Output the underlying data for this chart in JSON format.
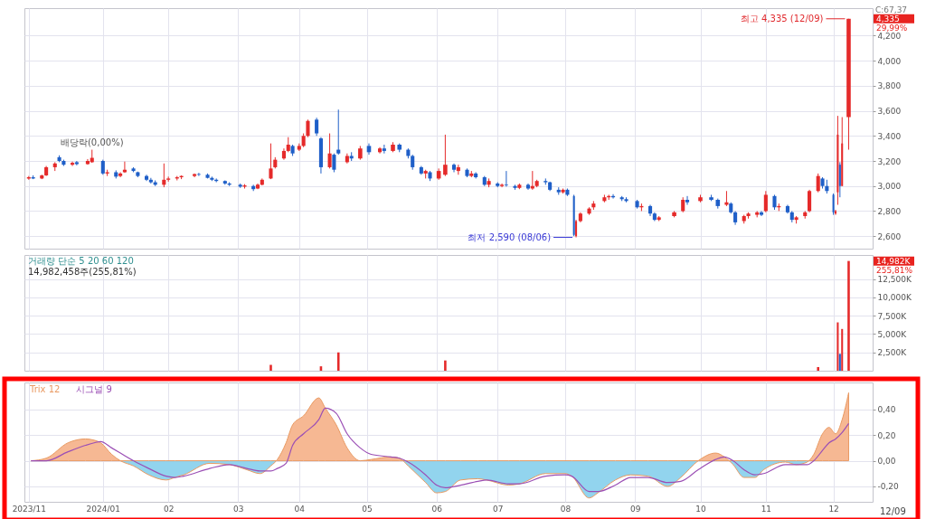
{
  "chart_data": [
    {
      "type": "candlestick",
      "x": [
        "2023-11-29",
        "2023-12-01",
        "2023-12-05",
        "2023-12-07",
        "2023-12-11",
        "2023-12-13",
        "2023-12-15",
        "2023-12-19",
        "2023-12-21",
        "2023-12-26",
        "2023-12-28",
        "2024-01-02",
        "2024-01-04",
        "2024-01-08",
        "2024-01-10",
        "2024-01-12",
        "2024-01-16",
        "2024-01-18",
        "2024-01-22",
        "2024-01-24",
        "2024-01-26",
        "2024-01-30",
        "2024-02-01",
        "2024-02-05",
        "2024-02-07",
        "2024-02-13",
        "2024-02-15",
        "2024-02-19",
        "2024-02-21",
        "2024-02-23",
        "2024-02-27",
        "2024-02-29",
        "2024-03-05",
        "2024-03-07",
        "2024-03-11",
        "2024-03-13",
        "2024-03-15",
        "2024-03-19",
        "2024-03-21",
        "2024-03-25",
        "2024-03-27",
        "2024-03-29",
        "2024-04-01",
        "2024-04-03",
        "2024-04-05",
        "2024-04-09",
        "2024-04-11",
        "2024-04-15",
        "2024-04-17",
        "2024-04-19",
        "2024-04-23",
        "2024-04-25",
        "2024-04-29",
        "2024-05-03",
        "2024-05-08",
        "2024-05-10",
        "2024-05-14",
        "2024-05-17",
        "2024-05-21",
        "2024-05-23",
        "2024-05-27",
        "2024-05-29",
        "2024-05-31",
        "2024-06-04",
        "2024-06-07",
        "2024-06-11",
        "2024-06-13",
        "2024-06-17",
        "2024-06-19",
        "2024-06-21",
        "2024-06-25",
        "2024-06-27",
        "2024-07-01",
        "2024-07-03",
        "2024-07-05",
        "2024-07-09",
        "2024-07-11",
        "2024-07-15",
        "2024-07-17",
        "2024-07-19",
        "2024-07-23",
        "2024-07-25",
        "2024-07-29",
        "2024-07-31",
        "2024-08-02",
        "2024-08-05",
        "2024-08-06",
        "2024-08-08",
        "2024-08-12",
        "2024-08-14",
        "2024-08-19",
        "2024-08-21",
        "2024-08-23",
        "2024-08-27",
        "2024-08-29",
        "2024-09-03",
        "2024-09-05",
        "2024-09-09",
        "2024-09-11",
        "2024-09-13",
        "2024-09-20",
        "2024-09-24",
        "2024-09-26",
        "2024-10-02",
        "2024-10-07",
        "2024-10-10",
        "2024-10-14",
        "2024-10-16",
        "2024-10-18",
        "2024-10-22",
        "2024-10-24",
        "2024-10-28",
        "2024-10-30",
        "2024-11-01",
        "2024-11-05",
        "2024-11-07",
        "2024-11-11",
        "2024-11-13",
        "2024-11-15",
        "2024-11-19",
        "2024-11-21",
        "2024-11-25",
        "2024-11-27",
        "2024-11-29",
        "2024-12-02",
        "2024-12-03",
        "2024-12-04",
        "2024-12-05",
        "2024-12-06",
        "2024-12-09"
      ],
      "ohlc": [
        [
          3060,
          3080,
          3050,
          3070
        ],
        [
          3070,
          3085,
          3055,
          3060
        ],
        [
          3060,
          3090,
          3055,
          3085
        ],
        [
          3085,
          3160,
          3080,
          3150
        ],
        [
          3150,
          3190,
          3120,
          3180
        ],
        [
          3230,
          3245,
          3190,
          3200
        ],
        [
          3200,
          3210,
          3160,
          3170
        ],
        [
          3170,
          3195,
          3160,
          3185
        ],
        [
          3190,
          3200,
          3165,
          3175
        ],
        [
          3175,
          3215,
          3170,
          3200
        ],
        [
          3190,
          3290,
          3185,
          3225
        ],
        [
          3200,
          3210,
          3090,
          3100
        ],
        [
          3100,
          3130,
          3080,
          3110
        ],
        [
          3110,
          3125,
          3060,
          3075
        ],
        [
          3080,
          3110,
          3070,
          3100
        ],
        [
          3110,
          3195,
          3105,
          3130
        ],
        [
          3140,
          3150,
          3110,
          3120
        ],
        [
          3110,
          3115,
          3070,
          3080
        ],
        [
          3080,
          3090,
          3040,
          3050
        ],
        [
          3050,
          3065,
          3020,
          3030
        ],
        [
          3030,
          3045,
          3000,
          3010
        ],
        [
          3010,
          3180,
          2990,
          3050
        ],
        [
          3050,
          3075,
          3035,
          3060
        ],
        [
          3060,
          3080,
          3045,
          3070
        ],
        [
          3070,
          3085,
          3055,
          3080
        ],
        [
          3080,
          3100,
          3070,
          3095
        ],
        [
          3095,
          3105,
          3080,
          3090
        ],
        [
          3090,
          3100,
          3060,
          3065
        ],
        [
          3065,
          3075,
          3040,
          3050
        ],
        [
          3050,
          3060,
          3030,
          3040
        ],
        [
          3040,
          3045,
          3010,
          3020
        ],
        [
          3020,
          3030,
          3000,
          3010
        ],
        [
          3010,
          3020,
          2985,
          2995
        ],
        [
          2995,
          3015,
          2980,
          3005
        ],
        [
          3000,
          3010,
          2960,
          2975
        ],
        [
          2980,
          3020,
          2975,
          3010
        ],
        [
          3010,
          3060,
          3005,
          3050
        ],
        [
          3060,
          3340,
          3055,
          3140
        ],
        [
          3150,
          3230,
          3140,
          3210
        ],
        [
          3220,
          3300,
          3210,
          3280
        ],
        [
          3280,
          3390,
          3270,
          3330
        ],
        [
          3320,
          3330,
          3240,
          3260
        ],
        [
          3290,
          3340,
          3280,
          3320
        ],
        [
          3320,
          3420,
          3310,
          3400
        ],
        [
          3400,
          3530,
          3390,
          3520
        ],
        [
          3530,
          3545,
          3400,
          3420
        ],
        [
          3380,
          3390,
          3100,
          3150
        ],
        [
          3150,
          3420,
          3140,
          3260
        ],
        [
          3250,
          3260,
          3110,
          3130
        ],
        [
          3290,
          3610,
          3250,
          3260
        ],
        [
          3190,
          3260,
          3180,
          3240
        ],
        [
          3240,
          3270,
          3200,
          3220
        ],
        [
          3220,
          3320,
          3210,
          3300
        ],
        [
          3320,
          3340,
          3250,
          3270
        ],
        [
          3270,
          3310,
          3260,
          3300
        ],
        [
          3300,
          3330,
          3260,
          3280
        ],
        [
          3280,
          3350,
          3270,
          3330
        ],
        [
          3330,
          3340,
          3270,
          3290
        ],
        [
          3290,
          3300,
          3220,
          3240
        ],
        [
          3240,
          3250,
          3130,
          3150
        ],
        [
          3150,
          3160,
          3090,
          3100
        ],
        [
          3100,
          3130,
          3060,
          3120
        ],
        [
          3110,
          3120,
          3040,
          3060
        ],
        [
          3060,
          3140,
          3050,
          3120
        ],
        [
          3090,
          3410,
          3080,
          3170
        ],
        [
          3170,
          3180,
          3110,
          3130
        ],
        [
          3120,
          3170,
          3090,
          3150
        ],
        [
          3130,
          3140,
          3070,
          3080
        ],
        [
          3080,
          3120,
          3070,
          3100
        ],
        [
          3100,
          3110,
          3060,
          3070
        ],
        [
          3070,
          3080,
          3000,
          3010
        ],
        [
          3010,
          3060,
          2990,
          3040
        ],
        [
          3020,
          3030,
          2990,
          3000
        ],
        [
          3000,
          3020,
          2990,
          3010
        ],
        [
          3010,
          3120,
          2995,
          3005
        ],
        [
          3000,
          3010,
          2970,
          2985
        ],
        [
          2985,
          3020,
          2975,
          3010
        ],
        [
          3010,
          3020,
          2970,
          2980
        ],
        [
          2980,
          3120,
          2970,
          3000
        ],
        [
          3000,
          3050,
          2990,
          3040
        ],
        [
          3040,
          3060,
          3010,
          3030
        ],
        [
          3030,
          3035,
          2960,
          2970
        ],
        [
          2970,
          2990,
          2930,
          2950
        ],
        [
          2950,
          2980,
          2940,
          2970
        ],
        [
          2970,
          2980,
          2920,
          2930
        ],
        [
          2920,
          2930,
          2600,
          2610
        ],
        [
          2600,
          2730,
          2590,
          2720
        ],
        [
          2720,
          2790,
          2710,
          2780
        ],
        [
          2780,
          2830,
          2770,
          2820
        ],
        [
          2830,
          2880,
          2810,
          2860
        ],
        [
          2880,
          2930,
          2870,
          2910
        ],
        [
          2910,
          2930,
          2890,
          2920
        ],
        [
          2920,
          2935,
          2900,
          2910
        ],
        [
          2910,
          2920,
          2880,
          2895
        ],
        [
          2895,
          2910,
          2870,
          2880
        ],
        [
          2880,
          2890,
          2820,
          2830
        ],
        [
          2830,
          2860,
          2800,
          2840
        ],
        [
          2840,
          2850,
          2760,
          2780
        ],
        [
          2780,
          2790,
          2720,
          2730
        ],
        [
          2730,
          2760,
          2720,
          2750
        ],
        [
          2760,
          2800,
          2750,
          2790
        ],
        [
          2800,
          2910,
          2790,
          2890
        ],
        [
          2890,
          2920,
          2850,
          2870
        ],
        [
          2880,
          2930,
          2870,
          2910
        ],
        [
          2910,
          2930,
          2880,
          2890
        ],
        [
          2890,
          2900,
          2820,
          2840
        ],
        [
          2850,
          2960,
          2840,
          2870
        ],
        [
          2860,
          2870,
          2780,
          2790
        ],
        [
          2790,
          2800,
          2690,
          2710
        ],
        [
          2720,
          2770,
          2700,
          2760
        ],
        [
          2760,
          2790,
          2740,
          2780
        ],
        [
          2770,
          2800,
          2750,
          2790
        ],
        [
          2790,
          2800,
          2760,
          2770
        ],
        [
          2800,
          2960,
          2790,
          2930
        ],
        [
          2920,
          2930,
          2810,
          2830
        ],
        [
          2830,
          2860,
          2800,
          2840
        ],
        [
          2840,
          2850,
          2780,
          2790
        ],
        [
          2790,
          2800,
          2710,
          2730
        ],
        [
          2730,
          2760,
          2700,
          2750
        ],
        [
          2760,
          2800,
          2740,
          2790
        ],
        [
          2800,
          2970,
          2790,
          2960
        ],
        [
          2960,
          3100,
          2950,
          3080
        ],
        [
          3060,
          3070,
          2980,
          3000
        ],
        [
          3000,
          3050,
          2940,
          2960
        ],
        [
          2930,
          2940,
          2770,
          2790
        ],
        [
          2780,
          2810,
          2770,
          2800
        ],
        [
          2950,
          3560,
          2850,
          3410
        ],
        [
          3170,
          3190,
          2910,
          3000
        ],
        [
          3000,
          3550,
          3000,
          3340
        ],
        [
          3550,
          4335,
          3290,
          4335
        ]
      ],
      "colors": [
        "#e52a2a",
        "#1f5fc8",
        "#e52a2a",
        "#e52a2a",
        "#e52a2a",
        "#1f5fc8",
        "#1f5fc8",
        "#e52a2a",
        "#1f5fc8",
        "#e52a2a",
        "#e52a2a",
        "#1f5fc8",
        "#e52a2a",
        "#1f5fc8",
        "#e52a2a",
        "#e52a2a",
        "#1f5fc8",
        "#1f5fc8",
        "#1f5fc8",
        "#1f5fc8",
        "#1f5fc8",
        "#e52a2a",
        "#e52a2a",
        "#e52a2a",
        "#e52a2a",
        "#e52a2a",
        "#1f5fc8",
        "#1f5fc8",
        "#1f5fc8",
        "#1f5fc8",
        "#1f5fc8",
        "#1f5fc8",
        "#1f5fc8",
        "#e52a2a",
        "#1f5fc8",
        "#e52a2a",
        "#e52a2a",
        "#e52a2a",
        "#e52a2a",
        "#e52a2a",
        "#e52a2a",
        "#1f5fc8",
        "#e52a2a",
        "#e52a2a",
        "#e52a2a",
        "#1f5fc8",
        "#1f5fc8",
        "#e52a2a",
        "#1f5fc8",
        "#1f5fc8",
        "#e52a2a",
        "#1f5fc8",
        "#e52a2a",
        "#1f5fc8",
        "#e52a2a",
        "#1f5fc8",
        "#e52a2a",
        "#1f5fc8",
        "#1f5fc8",
        "#1f5fc8",
        "#1f5fc8",
        "#e52a2a",
        "#1f5fc8",
        "#e52a2a",
        "#e52a2a",
        "#1f5fc8",
        "#e52a2a",
        "#1f5fc8",
        "#e52a2a",
        "#1f5fc8",
        "#1f5fc8",
        "#e52a2a",
        "#1f5fc8",
        "#e52a2a",
        "#1f5fc8",
        "#1f5fc8",
        "#e52a2a",
        "#1f5fc8",
        "#e52a2a",
        "#e52a2a",
        "#1f5fc8",
        "#1f5fc8",
        "#1f5fc8",
        "#e52a2a",
        "#1f5fc8",
        "#1f5fc8",
        "#e52a2a",
        "#e52a2a",
        "#e52a2a",
        "#e52a2a",
        "#e52a2a",
        "#e52a2a",
        "#1f5fc8",
        "#1f5fc8",
        "#1f5fc8",
        "#1f5fc8",
        "#e52a2a",
        "#1f5fc8",
        "#1f5fc8",
        "#e52a2a",
        "#e52a2a",
        "#e52a2a",
        "#1f5fc8",
        "#e52a2a",
        "#1f5fc8",
        "#1f5fc8",
        "#e52a2a",
        "#1f5fc8",
        "#1f5fc8",
        "#e52a2a",
        "#e52a2a",
        "#e52a2a",
        "#1f5fc8",
        "#e52a2a",
        "#1f5fc8",
        "#e52a2a",
        "#1f5fc8",
        "#1f5fc8",
        "#e52a2a",
        "#e52a2a",
        "#e52a2a",
        "#e52a2a",
        "#1f5fc8",
        "#1f5fc8",
        "#1f5fc8",
        "#e52a2a",
        "#e52a2a",
        "#1f5fc8",
        "#e52a2a",
        "#e52a2a"
      ],
      "xlim": [
        "2023-11-27",
        "2024-12-20"
      ],
      "xticks": [
        {
          "value": "2023-11-29",
          "label": null
        },
        {
          "value": "2024-01-02",
          "label": null
        },
        {
          "value": "2024-02-01",
          "label": null
        },
        {
          "value": "2024-03-04",
          "label": null
        },
        {
          "value": "2024-04-01",
          "label": null
        },
        {
          "value": "2024-05-02",
          "label": null
        },
        {
          "value": "2024-06-03",
          "label": null
        },
        {
          "value": "2024-07-01",
          "label": null
        },
        {
          "value": "2024-08-01",
          "label": null
        },
        {
          "value": "2024-09-02",
          "label": null
        },
        {
          "value": "2024-10-02",
          "label": null
        },
        {
          "value": "2024-11-01",
          "label": null
        },
        {
          "value": "2024-12-02",
          "label": null
        }
      ],
      "ylim": [
        2500,
        4420
      ],
      "yticks": [
        {
          "value": 2600,
          "label": "2,600"
        },
        {
          "value": 2800,
          "label": "2,800"
        },
        {
          "value": 3000,
          "label": "3,000"
        },
        {
          "value": 3200,
          "label": "3,200"
        },
        {
          "value": 3400,
          "label": "3,400"
        },
        {
          "value": 3600,
          "label": "3,600"
        },
        {
          "value": 3800,
          "label": "3,800"
        },
        {
          "value": 4000,
          "label": "4,000"
        },
        {
          "value": 4200,
          "label": "4,200"
        }
      ],
      "grid": true,
      "tick_labels": "y",
      "annotations": [
        {
          "text": "배당락(0,00%)",
          "x": "2023-12-28",
          "y": 3290
        },
        {
          "text": "최고 4,335 (12/09)",
          "x": "2024-12-09",
          "y": 4335
        },
        {
          "text": "최저 2,590 (08/06)",
          "x": "2024-08-06",
          "y": 2590
        },
        "C:67,37",
        "4,335",
        "29,99%"
      ]
    },
    {
      "type": "bar",
      "x": [
        "2024-03-19",
        "2024-04-11",
        "2024-04-19",
        "2024-06-07",
        "2024-11-25",
        "2024-12-04",
        "2024-12-05",
        "2024-12-06",
        "2024-12-09"
      ],
      "values": [
        800,
        600,
        2500,
        1400,
        500,
        6600,
        2300,
        5700,
        14982
      ],
      "colors": [
        "#e52a2a",
        "#e52a2a",
        "#e52a2a",
        "#e52a2a",
        "#e52a2a",
        "#e52a2a",
        "#1f5fc8",
        "#e52a2a",
        "#e52a2a"
      ],
      "xlim": [
        "2023-11-27",
        "2024-12-20"
      ],
      "xticks": [
        {
          "value": "2023-11-29",
          "label": null
        },
        {
          "value": "2024-01-02",
          "label": null
        },
        {
          "value": "2024-02-01",
          "label": null
        },
        {
          "value": "2024-03-04",
          "label": null
        },
        {
          "value": "2024-04-01",
          "label": null
        },
        {
          "value": "2024-05-02",
          "label": null
        },
        {
          "value": "2024-06-03",
          "label": null
        },
        {
          "value": "2024-07-01",
          "label": null
        },
        {
          "value": "2024-08-01",
          "label": null
        },
        {
          "value": "2024-09-02",
          "label": null
        },
        {
          "value": "2024-10-02",
          "label": null
        },
        {
          "value": "2024-11-01",
          "label": null
        },
        {
          "value": "2024-12-02",
          "label": null
        }
      ],
      "ylim": [
        0,
        15800
      ],
      "yticks": [
        {
          "value": 2500,
          "label": "2,500K"
        },
        {
          "value": 5000,
          "label": "5,000K"
        },
        {
          "value": 7500,
          "label": "7,500K"
        },
        {
          "value": 10000,
          "label": "10,000K"
        },
        {
          "value": 12500,
          "label": "12,500K"
        }
      ],
      "grid": true,
      "tick_labels": "y",
      "annotations": [
        "거래량 단순 5 20 60 120",
        "14,982,458주(255,81%)",
        "14,982K",
        "255,81%"
      ]
    },
    {
      "type": "line",
      "x": [
        "2023-11-30",
        "2023-12-07",
        "2023-12-17",
        "2023-12-25",
        "2023-12-29",
        "2024-01-01",
        "2024-01-06",
        "2024-01-10",
        "2024-01-16",
        "2024-01-23",
        "2024-01-31",
        "2024-02-04",
        "2024-02-08",
        "2024-02-20",
        "2024-02-29",
        "2024-03-08",
        "2024-03-14",
        "2024-03-19",
        "2024-03-22",
        "2024-03-26",
        "2024-03-29",
        "2024-04-03",
        "2024-04-10",
        "2024-04-13",
        "2024-04-18",
        "2024-04-23",
        "2024-04-29",
        "2024-05-04",
        "2024-05-13",
        "2024-05-17",
        "2024-05-21",
        "2024-05-29",
        "2024-06-03",
        "2024-06-07",
        "2024-06-14",
        "2024-06-22",
        "2024-06-26",
        "2024-07-06",
        "2024-07-11",
        "2024-07-23",
        "2024-08-01",
        "2024-08-04",
        "2024-08-12",
        "2024-08-16",
        "2024-08-24",
        "2024-08-31",
        "2024-09-08",
        "2024-09-17",
        "2024-09-23",
        "2024-10-01",
        "2024-10-09",
        "2024-10-13",
        "2024-10-17",
        "2024-10-22",
        "2024-10-27",
        "2024-10-31",
        "2024-11-10",
        "2024-11-15",
        "2024-11-20",
        "2024-11-23",
        "2024-11-27",
        "2024-11-30",
        "2024-12-03",
        "2024-12-06",
        "2024-12-09"
      ],
      "series": [
        {
          "name": "Trix 12",
          "type": "area",
          "color": "#e99a62",
          "colors": [
            "#f6b893",
            "#f6b893",
            "#f6b893",
            "#f6b893",
            "#f6b893",
            "#f6b893",
            "#f6b893",
            "#92d4ee",
            "#92d4ee",
            "#92d4ee",
            "#92d4ee",
            "#92d4ee",
            "#92d4ee",
            "#92d4ee",
            "#92d4ee",
            "#92d4ee",
            "#92d4ee",
            "#92d4ee",
            "#f6b893",
            "#f6b893",
            "#f6b893",
            "#f6b893",
            "#f6b893",
            "#f6b893",
            "#f6b893",
            "#f6b893",
            "#f6b893",
            "#f6b893",
            "#f6b893",
            "#f6b893",
            "#92d4ee",
            "#92d4ee",
            "#92d4ee",
            "#92d4ee",
            "#92d4ee",
            "#92d4ee",
            "#92d4ee",
            "#92d4ee",
            "#92d4ee",
            "#92d4ee",
            "#92d4ee",
            "#92d4ee",
            "#92d4ee",
            "#92d4ee",
            "#92d4ee",
            "#92d4ee",
            "#92d4ee",
            "#92d4ee",
            "#92d4ee",
            "#f6b893",
            "#f6b893",
            "#f6b893",
            "#92d4ee",
            "#92d4ee",
            "#92d4ee",
            "#92d4ee",
            "#92d4ee",
            "#92d4ee",
            "#92d4ee",
            "#f6b893",
            "#f6b893",
            "#f6b893",
            "#f6b893",
            "#f6b893",
            "#f6b893"
          ],
          "values": [
            0.0,
            0.02,
            0.14,
            0.17,
            0.16,
            0.14,
            0.05,
            0.0,
            -0.04,
            -0.11,
            -0.15,
            -0.13,
            -0.11,
            -0.02,
            -0.03,
            -0.07,
            -0.1,
            -0.04,
            0.01,
            0.14,
            0.28,
            0.35,
            0.49,
            0.41,
            0.28,
            0.1,
            0.0,
            0.01,
            0.03,
            0.02,
            -0.04,
            -0.17,
            -0.25,
            -0.24,
            -0.15,
            -0.14,
            -0.15,
            -0.19,
            -0.18,
            -0.1,
            -0.1,
            -0.12,
            -0.29,
            -0.25,
            -0.15,
            -0.11,
            -0.12,
            -0.2,
            -0.13,
            0.0,
            0.06,
            0.03,
            -0.03,
            -0.13,
            -0.13,
            -0.07,
            -0.01,
            -0.03,
            -0.01,
            0.05,
            0.21,
            0.26,
            0.21,
            0.32,
            0.53
          ]
        },
        {
          "name": "시그널 9",
          "type": "line",
          "color": "#9b4fb5",
          "values": [
            0.0,
            0.0,
            0.07,
            0.12,
            0.14,
            0.15,
            0.1,
            0.06,
            0.0,
            -0.06,
            -0.12,
            -0.13,
            -0.12,
            -0.06,
            -0.03,
            -0.06,
            -0.08,
            -0.08,
            -0.06,
            -0.02,
            0.12,
            0.21,
            0.32,
            0.41,
            0.37,
            0.21,
            0.1,
            0.05,
            0.03,
            0.02,
            -0.01,
            -0.11,
            -0.19,
            -0.21,
            -0.19,
            -0.16,
            -0.15,
            -0.18,
            -0.18,
            -0.12,
            -0.11,
            -0.12,
            -0.24,
            -0.24,
            -0.19,
            -0.13,
            -0.13,
            -0.17,
            -0.16,
            -0.07,
            0.01,
            0.03,
            0.0,
            -0.07,
            -0.11,
            -0.1,
            -0.03,
            -0.03,
            -0.03,
            0.0,
            0.08,
            0.14,
            0.17,
            0.22,
            0.29
          ]
        }
      ],
      "xlim": [
        "2023-11-27",
        "2024-12-20"
      ],
      "xticks": [
        {
          "value": "2023-11-29",
          "label": "2023/11"
        },
        {
          "value": "2024-01-02",
          "label": "2024/01"
        },
        {
          "value": "2024-02-01",
          "label": "02"
        },
        {
          "value": "2024-03-04",
          "label": "03"
        },
        {
          "value": "2024-04-01",
          "label": "04"
        },
        {
          "value": "2024-05-02",
          "label": "05"
        },
        {
          "value": "2024-06-03",
          "label": "06"
        },
        {
          "value": "2024-07-01",
          "label": "07"
        },
        {
          "value": "2024-08-01",
          "label": "08"
        },
        {
          "value": "2024-09-02",
          "label": "09"
        },
        {
          "value": "2024-10-02",
          "label": "10"
        },
        {
          "value": "2024-11-01",
          "label": "11"
        },
        {
          "value": "2024-12-02",
          "label": "12"
        }
      ],
      "ylim": [
        -0.32,
        0.61
      ],
      "yticks": [
        {
          "value": -0.2,
          "label": "-0,20"
        },
        {
          "value": 0,
          "label": "0,00"
        },
        {
          "value": 0.2,
          "label": "0,20"
        },
        {
          "value": 0.4,
          "label": "0,40"
        }
      ],
      "grid": true,
      "legend": "top left",
      "annotations": [
        "12/09"
      ]
    }
  ]
}
